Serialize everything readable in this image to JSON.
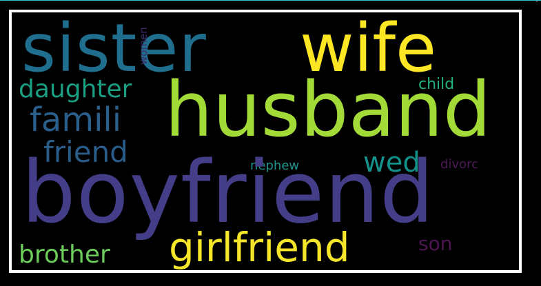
{
  "window": {
    "corner_glyph": ")"
  },
  "wordcloud": {
    "background": "#000000",
    "border_color": "#ffffff",
    "words": [
      {
        "text": "sister",
        "color": "#1f6e8e"
      },
      {
        "text": "wife",
        "color": "#fde725"
      },
      {
        "text": "husband",
        "color": "#a2da37"
      },
      {
        "text": "women",
        "color": "#3e2a6b"
      },
      {
        "text": "daughter",
        "color": "#1a9f83"
      },
      {
        "text": "child",
        "color": "#22b27b"
      },
      {
        "text": "famili",
        "color": "#2a5f8c"
      },
      {
        "text": "friend",
        "color": "#2a5c8a"
      },
      {
        "text": "wed",
        "color": "#13928c"
      },
      {
        "text": "nephew",
        "color": "#20918c"
      },
      {
        "text": "divorc",
        "color": "#4b1a54"
      },
      {
        "text": "boyfriend",
        "color": "#433e87"
      },
      {
        "text": "girlfriend",
        "color": "#f5e62a"
      },
      {
        "text": "son",
        "color": "#4d1552"
      },
      {
        "text": "brother",
        "color": "#6ccd5a"
      }
    ]
  }
}
